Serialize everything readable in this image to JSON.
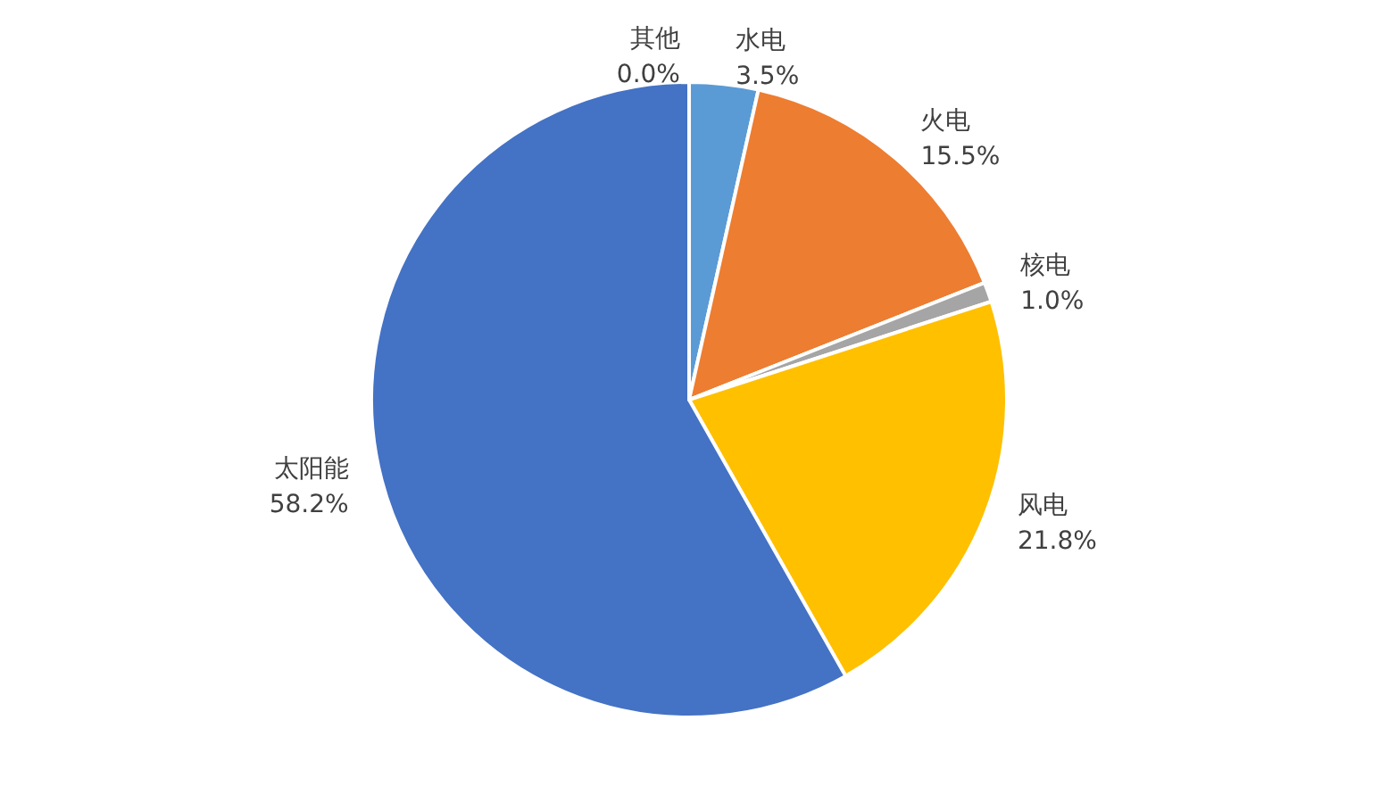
{
  "chart_data": {
    "type": "pie",
    "categories": [
      "水电",
      "火电",
      "核电",
      "风电",
      "太阳能",
      "其他"
    ],
    "values": [
      3.5,
      15.5,
      1.0,
      21.8,
      58.2,
      0.0
    ],
    "value_labels": [
      "3.5%",
      "15.5%",
      "1.0%",
      "21.8%",
      "58.2%",
      "0.0%"
    ],
    "colors": [
      "#5b9bd5",
      "#ed7d31",
      "#a5a5a5",
      "#ffc000",
      "#4472c4",
      "#70ad47"
    ],
    "legend": false
  }
}
